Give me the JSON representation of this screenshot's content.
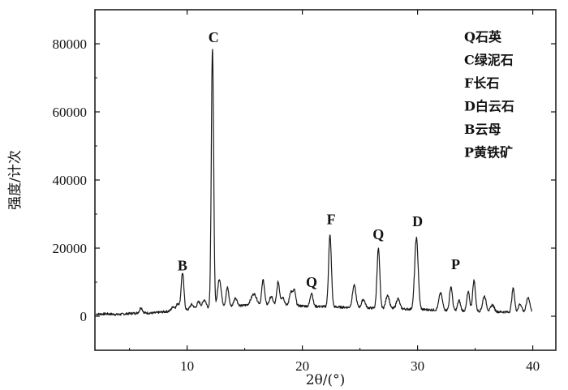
{
  "chart_data": {
    "type": "line",
    "title": "",
    "xlabel": "2θ/(°)",
    "ylabel": "强度/计次",
    "xlim": [
      2,
      42
    ],
    "ylim": [
      -10000,
      90000
    ],
    "x_ticks": [
      10,
      20,
      30,
      40
    ],
    "y_ticks": [
      0,
      20000,
      40000,
      60000,
      80000
    ],
    "x_tick_labels": [
      "10",
      "20",
      "30",
      "40"
    ],
    "y_tick_labels": [
      "0",
      "20000",
      "40000",
      "60000",
      "80000"
    ],
    "series": [
      {
        "baseline": [
          [
            2.1,
            600
          ],
          [
            3,
            700
          ],
          [
            4,
            500
          ],
          [
            5,
            800
          ],
          [
            6,
            1000
          ],
          [
            7,
            900
          ],
          [
            8,
            1300
          ],
          [
            9,
            1700
          ],
          [
            10,
            1800
          ],
          [
            11,
            2200
          ],
          [
            12,
            2500
          ],
          [
            13,
            3000
          ],
          [
            14,
            2800
          ],
          [
            15,
            3200
          ],
          [
            16,
            3000
          ],
          [
            17,
            3300
          ],
          [
            18,
            3000
          ],
          [
            19,
            3200
          ],
          [
            20,
            3000
          ],
          [
            21,
            2900
          ],
          [
            22,
            2800
          ],
          [
            23,
            2700
          ],
          [
            24,
            2600
          ],
          [
            25,
            2500
          ],
          [
            26,
            2400
          ],
          [
            27,
            2300
          ],
          [
            28,
            2200
          ],
          [
            29,
            2100
          ],
          [
            30,
            2000
          ],
          [
            31,
            1900
          ],
          [
            32,
            1800
          ],
          [
            33,
            1700
          ],
          [
            34,
            1600
          ],
          [
            35,
            1500
          ],
          [
            36,
            1400
          ],
          [
            37,
            1300
          ],
          [
            38,
            1200
          ],
          [
            39,
            1100
          ],
          [
            39.9,
            1000
          ]
        ],
        "peaks": [
          {
            "x": 6.0,
            "h": 1500,
            "w": 0.12
          },
          {
            "x": 8.8,
            "h": 1200,
            "w": 0.15
          },
          {
            "x": 9.2,
            "h": 2000,
            "w": 0.12
          },
          {
            "x": 9.6,
            "h": 11000,
            "w": 0.12
          },
          {
            "x": 10.4,
            "h": 1500,
            "w": 0.15
          },
          {
            "x": 11.0,
            "h": 2000,
            "w": 0.15
          },
          {
            "x": 11.5,
            "h": 2500,
            "w": 0.15
          },
          {
            "x": 12.2,
            "h": 76500,
            "w": 0.1
          },
          {
            "x": 12.8,
            "h": 8000,
            "w": 0.15
          },
          {
            "x": 13.5,
            "h": 5500,
            "w": 0.12
          },
          {
            "x": 14.2,
            "h": 2500,
            "w": 0.15
          },
          {
            "x": 15.8,
            "h": 3500,
            "w": 0.25
          },
          {
            "x": 16.6,
            "h": 7500,
            "w": 0.12
          },
          {
            "x": 17.3,
            "h": 2500,
            "w": 0.15
          },
          {
            "x": 17.9,
            "h": 7000,
            "w": 0.12
          },
          {
            "x": 18.3,
            "h": 2500,
            "w": 0.15
          },
          {
            "x": 19.0,
            "h": 4000,
            "w": 0.12
          },
          {
            "x": 19.3,
            "h": 4500,
            "w": 0.12
          },
          {
            "x": 20.8,
            "h": 4000,
            "w": 0.12
          },
          {
            "x": 22.4,
            "h": 21000,
            "w": 0.12
          },
          {
            "x": 24.5,
            "h": 6500,
            "w": 0.15
          },
          {
            "x": 25.3,
            "h": 2500,
            "w": 0.15
          },
          {
            "x": 26.6,
            "h": 17500,
            "w": 0.12
          },
          {
            "x": 27.4,
            "h": 4000,
            "w": 0.15
          },
          {
            "x": 28.3,
            "h": 3000,
            "w": 0.15
          },
          {
            "x": 29.9,
            "h": 21000,
            "w": 0.15
          },
          {
            "x": 32.0,
            "h": 5000,
            "w": 0.15
          },
          {
            "x": 32.9,
            "h": 7000,
            "w": 0.12
          },
          {
            "x": 33.6,
            "h": 3000,
            "w": 0.12
          },
          {
            "x": 34.4,
            "h": 5500,
            "w": 0.12
          },
          {
            "x": 34.9,
            "h": 9000,
            "w": 0.12
          },
          {
            "x": 35.8,
            "h": 4500,
            "w": 0.15
          },
          {
            "x": 36.5,
            "h": 2000,
            "w": 0.15
          },
          {
            "x": 38.3,
            "h": 7000,
            "w": 0.12
          },
          {
            "x": 38.9,
            "h": 2500,
            "w": 0.15
          },
          {
            "x": 39.6,
            "h": 4500,
            "w": 0.15
          }
        ]
      }
    ],
    "annotations": [
      {
        "text": "B",
        "x": 9.6,
        "y": 13500
      },
      {
        "text": "C",
        "x": 12.3,
        "y": 80500
      },
      {
        "text": "Q",
        "x": 20.8,
        "y": 8600
      },
      {
        "text": "F",
        "x": 22.5,
        "y": 27000
      },
      {
        "text": "Q",
        "x": 26.6,
        "y": 22600
      },
      {
        "text": "D",
        "x": 30.0,
        "y": 26400
      },
      {
        "text": "P",
        "x": 33.3,
        "y": 13800
      }
    ],
    "legend": {
      "position": "top-right",
      "entries": [
        "Q石英",
        "C绿泥石",
        "F长石",
        "D白云石",
        "B云母",
        "P黄铁矿"
      ]
    },
    "colors": {
      "line": "#1a1a1a",
      "axis": "#111111",
      "background": "#ffffff"
    }
  }
}
